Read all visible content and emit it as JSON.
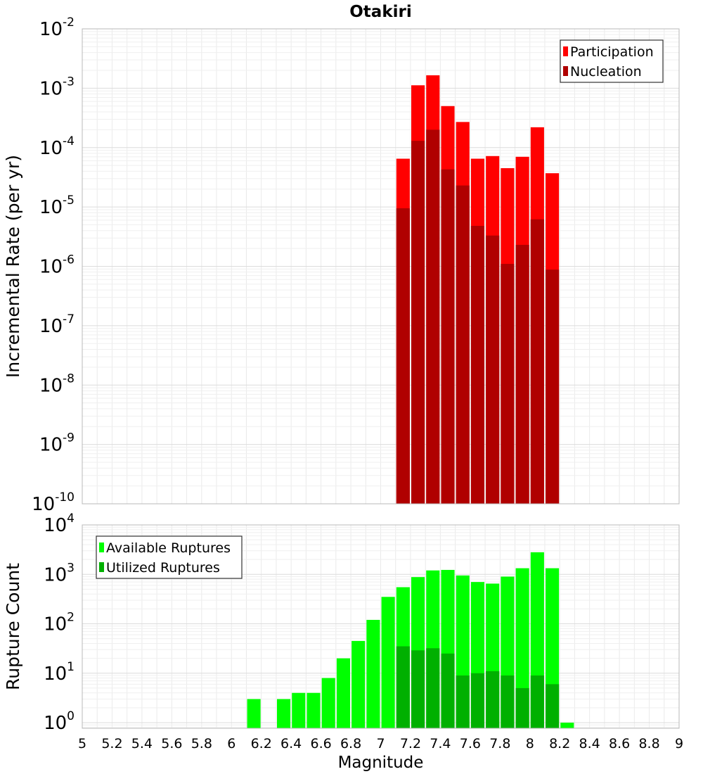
{
  "chart_data": [
    {
      "type": "bar",
      "title": "Otakiri",
      "xlabel": "",
      "ylabel": "Incremental Rate (per yr)",
      "yscale": "log",
      "xlim": [
        5,
        9
      ],
      "ylim": [
        1e-10,
        0.01
      ],
      "ytick_exponents": [
        "-10",
        "-9",
        "-8",
        "-7",
        "-6",
        "-5",
        "-4",
        "-3",
        "-2"
      ],
      "ytick_base": "10",
      "grid": true,
      "legend_position": "top-right",
      "bar_width": 0.09,
      "series": [
        {
          "name": "Participation",
          "color": "#ff0000",
          "x": [
            7.15,
            7.25,
            7.35,
            7.45,
            7.55,
            7.65,
            7.75,
            7.85,
            7.95,
            8.05,
            8.15
          ],
          "values": [
            6.5e-05,
            0.00112,
            0.00165,
            0.0005,
            0.00027,
            6.5e-05,
            7.2e-05,
            4.5e-05,
            7e-05,
            0.00022,
            3.7e-05
          ]
        },
        {
          "name": "Nucleation",
          "color": "#b00000",
          "x": [
            7.15,
            7.25,
            7.35,
            7.45,
            7.55,
            7.65,
            7.75,
            7.85,
            7.95,
            8.05,
            8.15
          ],
          "values": [
            9.5e-06,
            0.00013,
            0.0002,
            4.3e-05,
            2.3e-05,
            4.8e-06,
            3.3e-06,
            1.1e-06,
            2.3e-06,
            6.2e-06,
            8.8e-07
          ]
        }
      ]
    },
    {
      "type": "bar",
      "title": "",
      "xlabel": "Magnitude",
      "ylabel": "Rupture Count",
      "yscale": "log",
      "xlim": [
        5,
        9
      ],
      "ylim": [
        0.77,
        10000
      ],
      "ytick_exponents": [
        "0",
        "1",
        "2",
        "3",
        "4"
      ],
      "ytick_base": "10",
      "xtick_labels": [
        "5",
        "5.2",
        "5.4",
        "5.6",
        "5.8",
        "6",
        "6.2",
        "6.4",
        "6.6",
        "6.8",
        "7",
        "7.2",
        "7.4",
        "7.6",
        "7.8",
        "8",
        "8.2",
        "8.4",
        "8.6",
        "8.8",
        "9"
      ],
      "grid": true,
      "legend_position": "top-left",
      "bar_width": 0.09,
      "series": [
        {
          "name": "Available Ruptures",
          "color": "#00ff00",
          "x": [
            6.15,
            6.35,
            6.45,
            6.55,
            6.65,
            6.75,
            6.85,
            6.95,
            7.05,
            7.15,
            7.25,
            7.35,
            7.45,
            7.55,
            7.65,
            7.75,
            7.85,
            7.95,
            8.05,
            8.15,
            8.25
          ],
          "values": [
            3,
            3,
            4,
            4,
            8,
            20,
            45,
            120,
            350,
            550,
            880,
            1200,
            1230,
            950,
            700,
            650,
            900,
            1330,
            2800,
            1330,
            1
          ]
        },
        {
          "name": "Utilized Ruptures",
          "color": "#00b000",
          "x": [
            7.15,
            7.25,
            7.35,
            7.45,
            7.55,
            7.65,
            7.75,
            7.85,
            7.95,
            8.05,
            8.15
          ],
          "values": [
            35,
            29,
            32,
            25,
            9,
            10,
            11,
            9,
            5,
            9,
            6
          ]
        }
      ]
    }
  ]
}
